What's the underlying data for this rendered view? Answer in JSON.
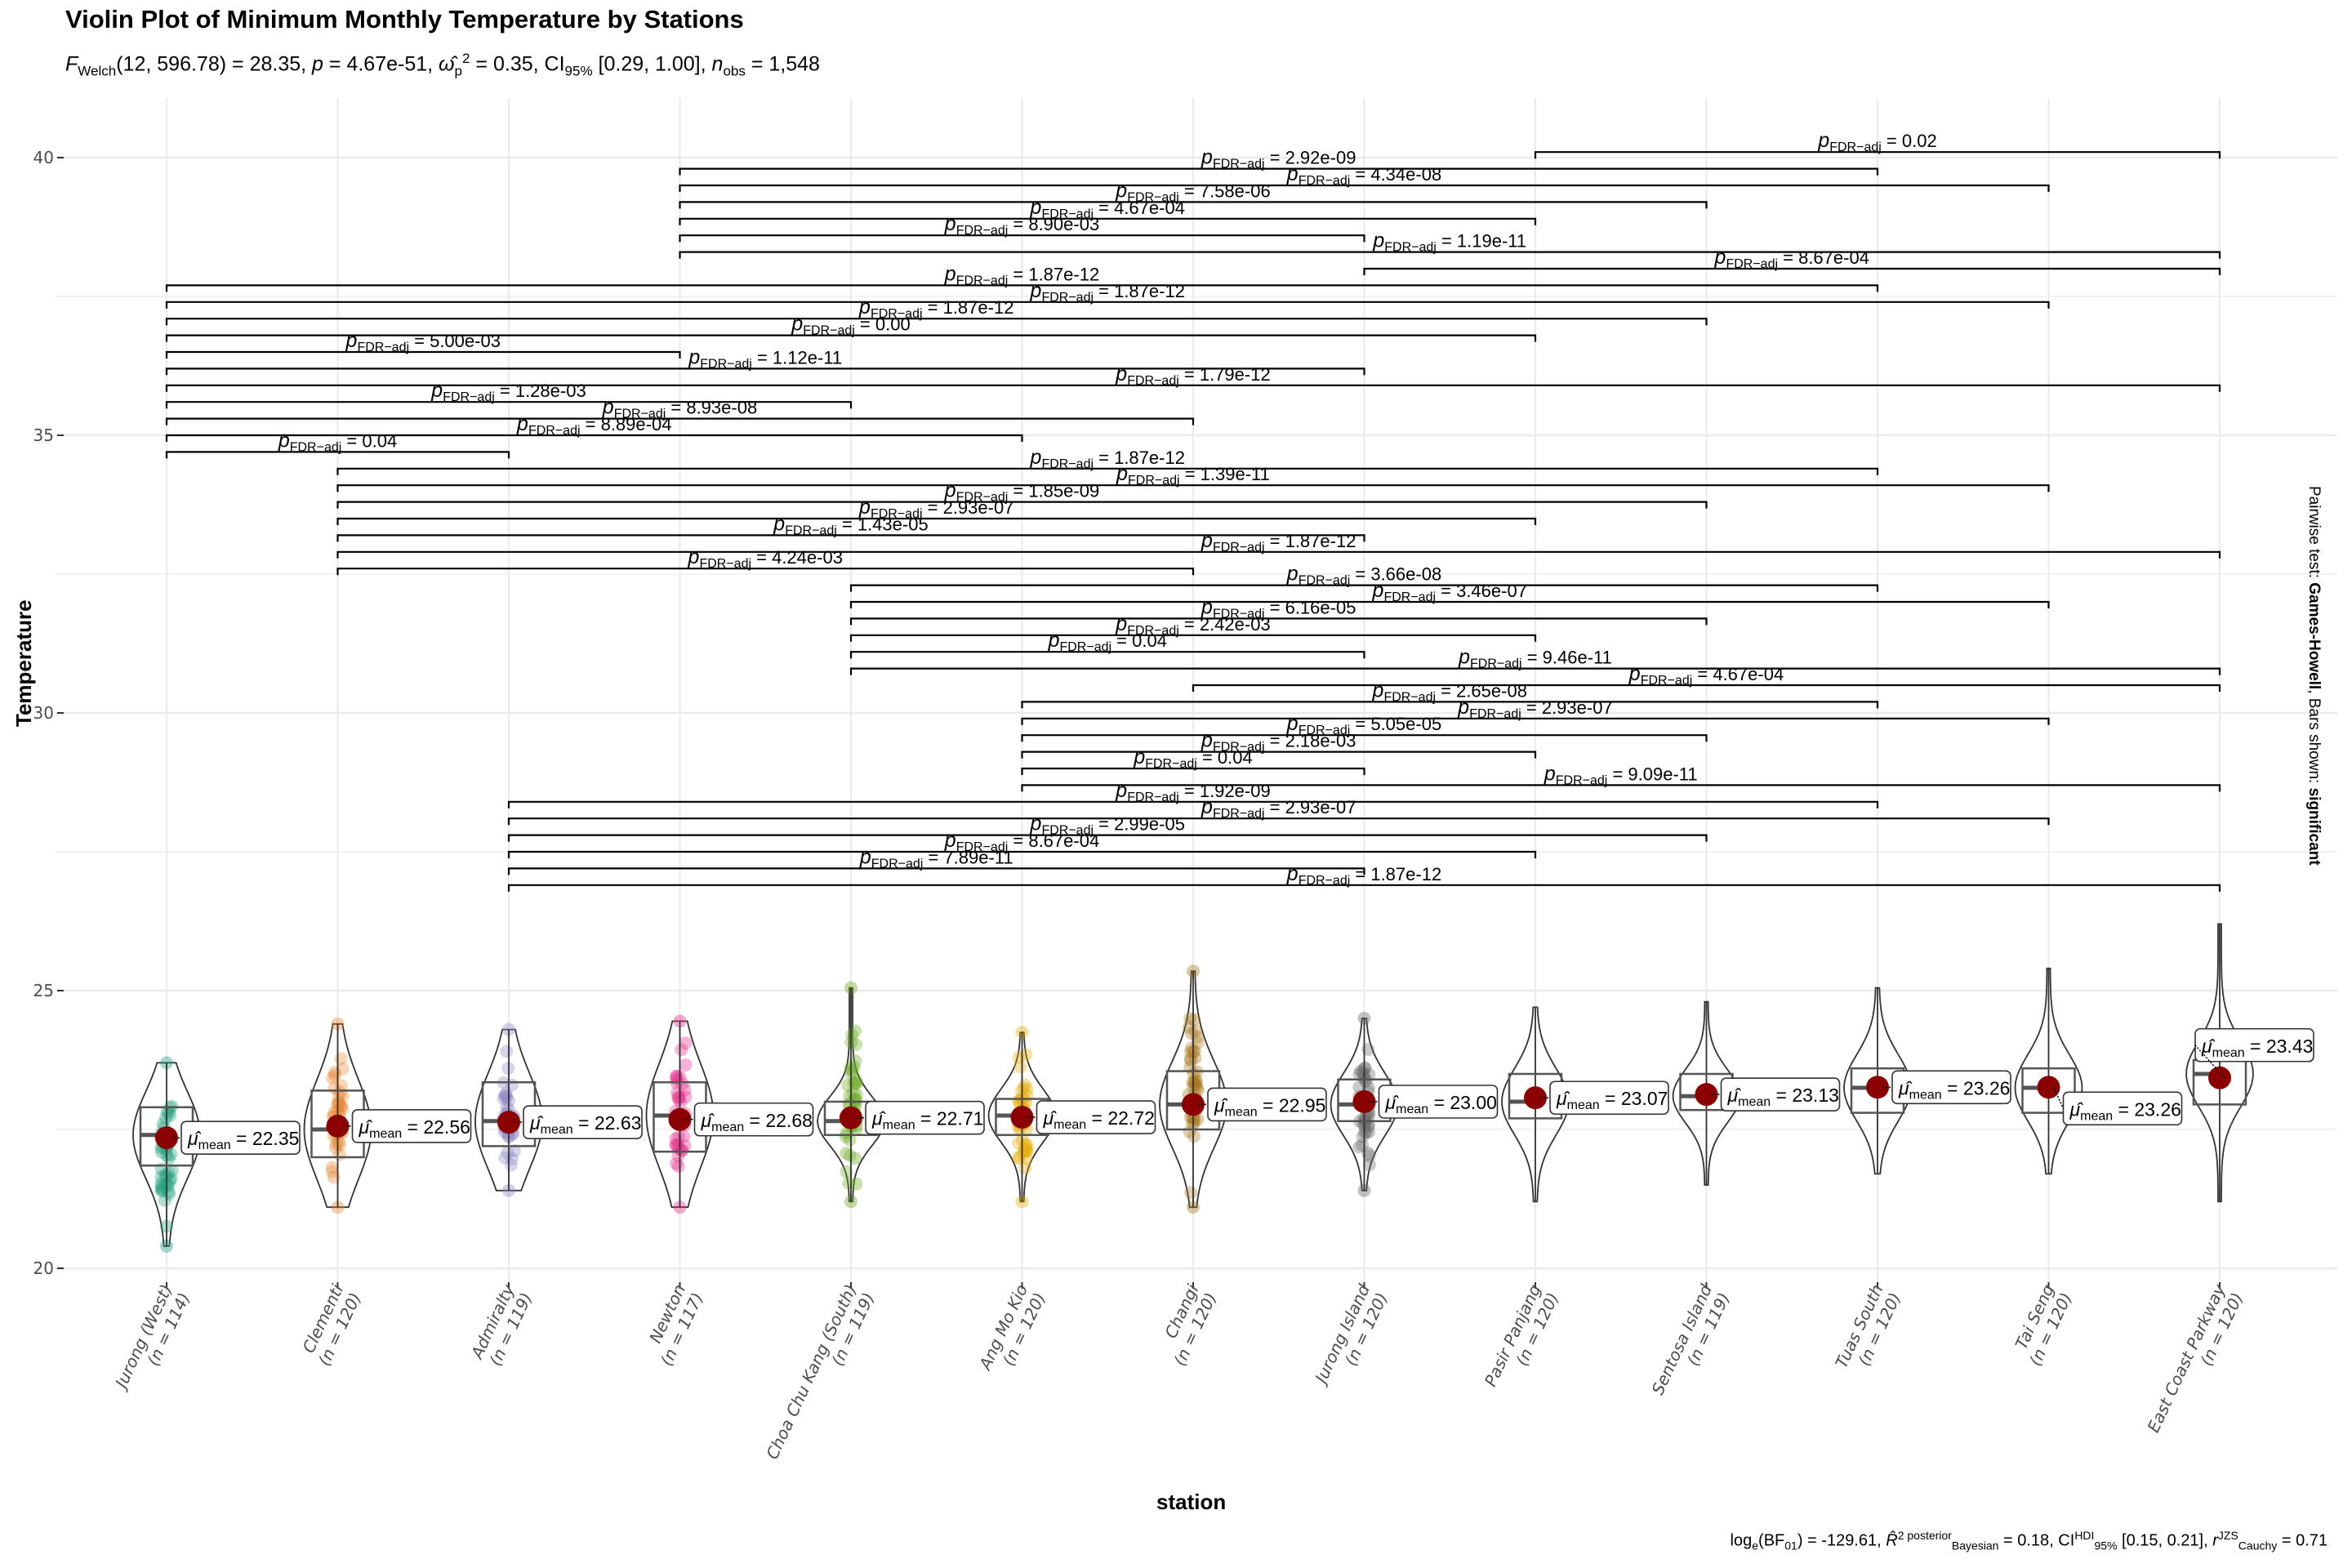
{
  "chart_data": {
    "type": "violin",
    "title": "Violin Plot of Minimum Monthly Temperature by Stations",
    "subtitle": {
      "test": "Welch",
      "df1": "12",
      "df2": "596.78",
      "statistic": "28.35",
      "p": "4.67e-51",
      "effect_size_symbol": "omega_p^2",
      "effect_size": "0.35",
      "ci_label": "95%",
      "ci": "[0.29, 1.00]",
      "n_obs": "1,548",
      "text": "F_Welch(12, 596.78) = 28.35, p = 4.67e-51, ω̂²_p = 0.35, CI95% [0.29, 1.00], n_obs = 1,548"
    },
    "xlabel": "station",
    "ylabel": "Temperature",
    "ylim": [
      20,
      40
    ],
    "yticks": [
      20,
      25,
      30,
      35,
      40
    ],
    "grid": true,
    "caption": "loge(BF01) = -129.61, R̂²posterior Bayesian = 0.18, CI HDI 95% [0.15, 0.21], r JZS Cauchy = 0.71",
    "caption_parts": {
      "log_bf01": "-129.61",
      "r2_posterior": "0.18",
      "ci_hdi": "[0.15, 0.21]",
      "r_cauchy": "0.71"
    },
    "side_caption": {
      "prefix": "Pairwise test: ",
      "test": "Games-Howell",
      "middle": ", Bars shown: ",
      "shown": "significant"
    },
    "mean_label_prefix": "μ̂mean = ",
    "stations": [
      {
        "name": "Jurong (West)",
        "n": 114,
        "mean": 22.35,
        "min": 20.4,
        "q1": 21.85,
        "median": 22.4,
        "q3": 22.9,
        "max": 23.7,
        "color": "#1B9E77",
        "points": true
      },
      {
        "name": "Clementi",
        "n": 120,
        "mean": 22.56,
        "min": 21.1,
        "q1": 22.0,
        "median": 22.5,
        "q3": 23.2,
        "max": 24.4,
        "color": "#E6852E",
        "points": true
      },
      {
        "name": "Admiralty",
        "n": 119,
        "mean": 22.63,
        "min": 21.4,
        "q1": 22.2,
        "median": 22.65,
        "q3": 23.35,
        "max": 24.3,
        "color": "#8A85C4",
        "points": true
      },
      {
        "name": "Newton",
        "n": 117,
        "mean": 22.68,
        "min": 21.1,
        "q1": 22.1,
        "median": 22.75,
        "q3": 23.35,
        "max": 24.45,
        "color": "#E7298A",
        "points": true
      },
      {
        "name": "Choa Chu Kang (South)",
        "n": 119,
        "mean": 22.71,
        "min": 21.2,
        "q1": 22.4,
        "median": 22.65,
        "q3": 23.0,
        "max": 25.05,
        "color": "#66A61E",
        "points": true
      },
      {
        "name": "Ang Mo Kio",
        "n": 120,
        "mean": 22.72,
        "min": 21.2,
        "q1": 22.4,
        "median": 22.75,
        "q3": 23.05,
        "max": 24.25,
        "color": "#E6AB02",
        "points": true
      },
      {
        "name": "Changi",
        "n": 120,
        "mean": 22.95,
        "min": 21.1,
        "q1": 22.5,
        "median": 22.95,
        "q3": 23.55,
        "max": 25.35,
        "color": "#A6761D",
        "points": true
      },
      {
        "name": "Jurong Island",
        "n": 120,
        "mean": 23.0,
        "min": 21.4,
        "q1": 22.65,
        "median": 22.95,
        "q3": 23.4,
        "max": 24.5,
        "color": "#666666",
        "points": true
      },
      {
        "name": "Pasir Panjang",
        "n": 120,
        "mean": 23.07,
        "min": 21.2,
        "q1": 22.7,
        "median": 23.0,
        "q3": 23.5,
        "max": 24.7,
        "color": "#1B9E77",
        "points": false
      },
      {
        "name": "Sentosa Island",
        "n": 119,
        "mean": 23.13,
        "min": 21.5,
        "q1": 22.85,
        "median": 23.1,
        "q3": 23.5,
        "max": 24.8,
        "color": "#D95F02",
        "points": false
      },
      {
        "name": "Tuas South",
        "n": 120,
        "mean": 23.26,
        "min": 21.7,
        "q1": 22.8,
        "median": 23.25,
        "q3": 23.6,
        "max": 25.05,
        "color": "#7570B3",
        "points": false
      },
      {
        "name": "Tai Seng",
        "n": 120,
        "mean": 23.26,
        "min": 21.7,
        "q1": 22.8,
        "median": 23.25,
        "q3": 23.6,
        "max": 25.4,
        "color": "#E7298A",
        "points": false
      },
      {
        "name": "East Coast Parkway",
        "n": 120,
        "mean": 23.43,
        "min": 21.2,
        "q1": 22.95,
        "median": 23.5,
        "q3": 23.75,
        "max": 26.2,
        "color": "#66A61E",
        "points": false
      }
    ],
    "comparisons": [
      {
        "from": 8,
        "to": 12,
        "p": "0.02",
        "level": 40.1
      },
      {
        "from": 3,
        "to": 10,
        "p": "2.92e-09",
        "level": 39.8
      },
      {
        "from": 3,
        "to": 11,
        "p": "4.34e-08",
        "level": 39.5
      },
      {
        "from": 3,
        "to": 9,
        "p": "7.58e-06",
        "level": 39.2
      },
      {
        "from": 3,
        "to": 8,
        "p": "4.67e-04",
        "level": 38.9
      },
      {
        "from": 3,
        "to": 7,
        "p": "8.90e-03",
        "level": 38.6
      },
      {
        "from": 3,
        "to": 12,
        "p": "1.19e-11",
        "level": 38.3
      },
      {
        "from": 7,
        "to": 12,
        "p": "8.67e-04",
        "level": 38.0
      },
      {
        "from": 0,
        "to": 10,
        "p": "1.87e-12",
        "level": 37.7
      },
      {
        "from": 0,
        "to": 11,
        "p": "1.87e-12",
        "level": 37.4
      },
      {
        "from": 0,
        "to": 9,
        "p": "1.87e-12",
        "level": 37.1
      },
      {
        "from": 0,
        "to": 8,
        "p": "0.00",
        "level": 36.8
      },
      {
        "from": 0,
        "to": 3,
        "p": "5.00e-03",
        "level": 36.5
      },
      {
        "from": 0,
        "to": 7,
        "p": "1.12e-11",
        "level": 36.2
      },
      {
        "from": 0,
        "to": 12,
        "p": "1.79e-12",
        "level": 35.9
      },
      {
        "from": 0,
        "to": 4,
        "p": "1.28e-03",
        "level": 35.6
      },
      {
        "from": 0,
        "to": 6,
        "p": "8.93e-08",
        "level": 35.3
      },
      {
        "from": 0,
        "to": 5,
        "p": "8.89e-04",
        "level": 35.0
      },
      {
        "from": 0,
        "to": 2,
        "p": "0.04",
        "level": 34.7
      },
      {
        "from": 1,
        "to": 10,
        "p": "1.87e-12",
        "level": 34.4
      },
      {
        "from": 1,
        "to": 11,
        "p": "1.39e-11",
        "level": 34.1
      },
      {
        "from": 1,
        "to": 9,
        "p": "1.85e-09",
        "level": 33.8
      },
      {
        "from": 1,
        "to": 8,
        "p": "2.93e-07",
        "level": 33.5
      },
      {
        "from": 1,
        "to": 7,
        "p": "1.43e-05",
        "level": 33.2
      },
      {
        "from": 1,
        "to": 12,
        "p": "1.87e-12",
        "level": 32.9
      },
      {
        "from": 1,
        "to": 6,
        "p": "4.24e-03",
        "level": 32.6
      },
      {
        "from": 4,
        "to": 10,
        "p": "3.66e-08",
        "level": 32.3
      },
      {
        "from": 4,
        "to": 11,
        "p": "3.46e-07",
        "level": 32.0
      },
      {
        "from": 4,
        "to": 9,
        "p": "6.16e-05",
        "level": 31.7
      },
      {
        "from": 4,
        "to": 8,
        "p": "2.42e-03",
        "level": 31.4
      },
      {
        "from": 4,
        "to": 7,
        "p": "0.04",
        "level": 31.1
      },
      {
        "from": 4,
        "to": 12,
        "p": "9.46e-11",
        "level": 30.8
      },
      {
        "from": 6,
        "to": 12,
        "p": "4.67e-04",
        "level": 30.5
      },
      {
        "from": 5,
        "to": 10,
        "p": "2.65e-08",
        "level": 30.2
      },
      {
        "from": 5,
        "to": 11,
        "p": "2.93e-07",
        "level": 29.9
      },
      {
        "from": 5,
        "to": 9,
        "p": "5.05e-05",
        "level": 29.6
      },
      {
        "from": 5,
        "to": 8,
        "p": "2.18e-03",
        "level": 29.3
      },
      {
        "from": 5,
        "to": 7,
        "p": "0.04",
        "level": 29.0
      },
      {
        "from": 5,
        "to": 12,
        "p": "9.09e-11",
        "level": 28.7
      },
      {
        "from": 2,
        "to": 10,
        "p": "1.92e-09",
        "level": 28.4
      },
      {
        "from": 2,
        "to": 11,
        "p": "2.93e-07",
        "level": 28.1
      },
      {
        "from": 2,
        "to": 9,
        "p": "2.99e-05",
        "level": 27.8
      },
      {
        "from": 2,
        "to": 8,
        "p": "8.67e-04",
        "level": 27.5
      },
      {
        "from": 2,
        "to": 7,
        "p": "7.89e-11",
        "level": 27.2
      },
      {
        "from": 2,
        "to": 12,
        "p": "1.87e-12",
        "level": 26.9
      }
    ]
  }
}
